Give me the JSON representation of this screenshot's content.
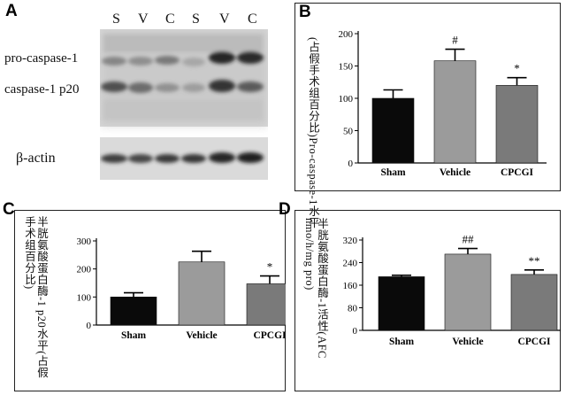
{
  "panels": {
    "A": {
      "letter": "A",
      "lanes": [
        "S",
        "V",
        "C",
        "S",
        "V",
        "C"
      ],
      "bands": {
        "pro": "pro-caspase-1",
        "p20": "caspase-1 p20",
        "actin": "β-actin"
      }
    },
    "B": {
      "letter": "B",
      "ylabel": "(占假手术组百分比)Pro-caspase-1水平"
    },
    "C": {
      "letter": "C",
      "ylabel": "半胱氨酸蛋白酶-1 p20水平(占假手术组百分比)"
    },
    "D": {
      "letter": "D",
      "ylabel": "半胱氨酸蛋白酶-1活性(AFC nmo/h/mg pro)"
    }
  },
  "chart_data": [
    {
      "type": "bar",
      "panel": "B",
      "categories": [
        "Sham",
        "Vehicle",
        "CPCGI"
      ],
      "values": [
        100,
        158,
        120
      ],
      "errors": [
        13,
        18,
        12
      ],
      "annotations": [
        "",
        "#",
        "*"
      ],
      "ylabel": "(占假手术组百分比)Pro-caspase-1水平",
      "ylim": [
        0,
        200
      ],
      "yticks": [
        0,
        50,
        100,
        150,
        200
      ],
      "colors": [
        "#0a0a0a",
        "#9b9b9b",
        "#7a7a7a"
      ]
    },
    {
      "type": "bar",
      "panel": "C",
      "categories": [
        "Sham",
        "Vehicle",
        "CPCGI"
      ],
      "values": [
        100,
        225,
        147
      ],
      "errors": [
        15,
        38,
        28
      ],
      "annotations": [
        "",
        "",
        "*"
      ],
      "ylabel": "半胱氨酸蛋白酶-1 p20水平(占假手术组百分比)",
      "ylim": [
        0,
        300
      ],
      "yticks": [
        0,
        100,
        200,
        300
      ],
      "colors": [
        "#0a0a0a",
        "#9b9b9b",
        "#7a7a7a"
      ]
    },
    {
      "type": "bar",
      "panel": "D",
      "categories": [
        "Sham",
        "Vehicle",
        "CPCGI"
      ],
      "values": [
        190,
        270,
        198
      ],
      "errors": [
        5,
        20,
        16
      ],
      "annotations": [
        "",
        "##",
        "**"
      ],
      "ylabel": "半胱氨酸蛋白酶-1活性(AFC nmo/h/mg pro)",
      "ylim": [
        0,
        320
      ],
      "yticks": [
        0,
        80,
        160,
        240,
        320
      ],
      "colors": [
        "#0a0a0a",
        "#9b9b9b",
        "#7a7a7a"
      ]
    }
  ]
}
